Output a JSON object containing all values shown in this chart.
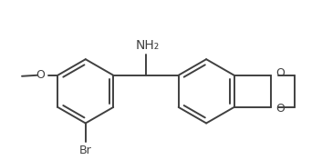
{
  "background_color": "#ffffff",
  "line_color": "#404040",
  "line_width": 1.4,
  "text_color": "#404040",
  "font_size": 9,
  "label_NH2": "NH₂",
  "label_Br": "Br",
  "label_O_left": "O",
  "label_O_right_top": "O",
  "label_O_right_bot": "O"
}
